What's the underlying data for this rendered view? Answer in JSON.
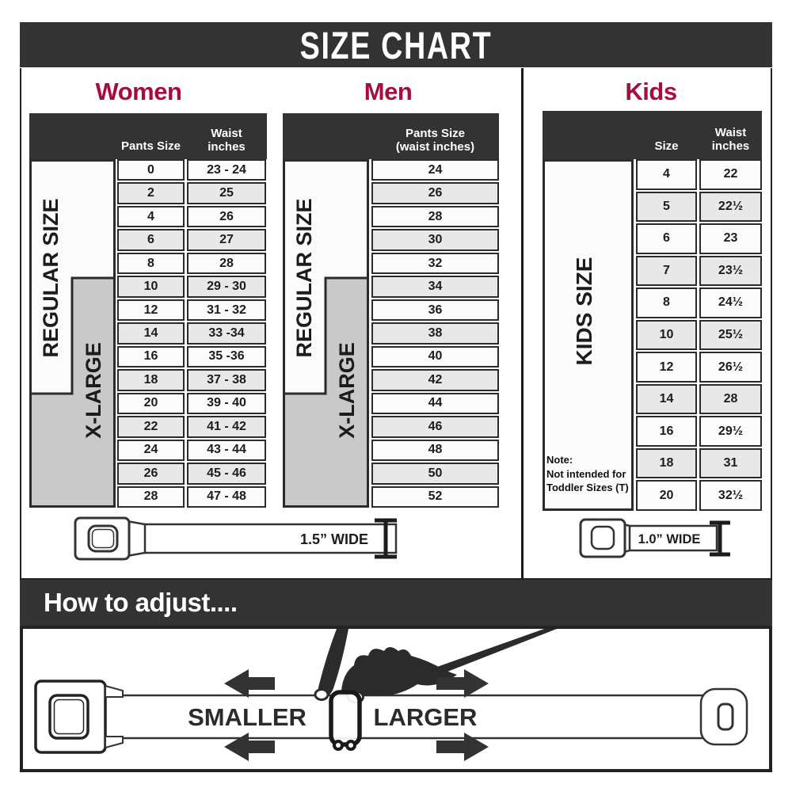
{
  "title": "SIZE CHART",
  "colors": {
    "accent": "#a50d3d",
    "dark": "#333333",
    "row_shade": "#e8e8e8",
    "xlarge_gray": "#c9c9c9"
  },
  "women": {
    "heading": "Women",
    "col1_header": "Pants Size",
    "col2_header_l1": "Waist",
    "col2_header_l2": "inches",
    "regular_label": "REGULAR SIZE",
    "xlarge_label": "X-LARGE",
    "rows": [
      {
        "size": "0",
        "waist": "23 - 24"
      },
      {
        "size": "2",
        "waist": "25"
      },
      {
        "size": "4",
        "waist": "26"
      },
      {
        "size": "6",
        "waist": "27"
      },
      {
        "size": "8",
        "waist": "28"
      },
      {
        "size": "10",
        "waist": "29 - 30"
      },
      {
        "size": "12",
        "waist": "31 - 32"
      },
      {
        "size": "14",
        "waist": "33 -34"
      },
      {
        "size": "16",
        "waist": "35 -36"
      },
      {
        "size": "18",
        "waist": "37 - 38"
      },
      {
        "size": "20",
        "waist": "39 - 40"
      },
      {
        "size": "22",
        "waist": "41 - 42"
      },
      {
        "size": "24",
        "waist": "43 - 44"
      },
      {
        "size": "26",
        "waist": "45 - 46"
      },
      {
        "size": "28",
        "waist": "47 - 48"
      }
    ]
  },
  "men": {
    "heading": "Men",
    "col_header_l1": "Pants Size",
    "col_header_l2": "(waist inches)",
    "regular_label": "REGULAR SIZE",
    "xlarge_label": "X-LARGE",
    "rows": [
      "24",
      "26",
      "28",
      "30",
      "32",
      "34",
      "36",
      "38",
      "40",
      "42",
      "44",
      "46",
      "48",
      "50",
      "52"
    ]
  },
  "kids": {
    "heading": "Kids",
    "col1_header": "Size",
    "col2_header_l1": "Waist",
    "col2_header_l2": "inches",
    "side_label": "KIDS SIZE",
    "note_l1": "Note:",
    "note_l2": "Not intended for",
    "note_l3": "Toddler Sizes (T)",
    "rows": [
      {
        "size": "4",
        "waist": "22"
      },
      {
        "size": "5",
        "waist": "22½"
      },
      {
        "size": "6",
        "waist": "23"
      },
      {
        "size": "7",
        "waist": "23½"
      },
      {
        "size": "8",
        "waist": "24½"
      },
      {
        "size": "10",
        "waist": "25½"
      },
      {
        "size": "12",
        "waist": "26½"
      },
      {
        "size": "14",
        "waist": "28"
      },
      {
        "size": "16",
        "waist": "29½"
      },
      {
        "size": "18",
        "waist": "31"
      },
      {
        "size": "20",
        "waist": "32½"
      }
    ]
  },
  "belts": {
    "adult_label": "1.5” WIDE",
    "kids_label": "1.0” WIDE"
  },
  "adjust": {
    "heading": "How to adjust....",
    "smaller": "SMALLER",
    "larger": "LARGER"
  }
}
